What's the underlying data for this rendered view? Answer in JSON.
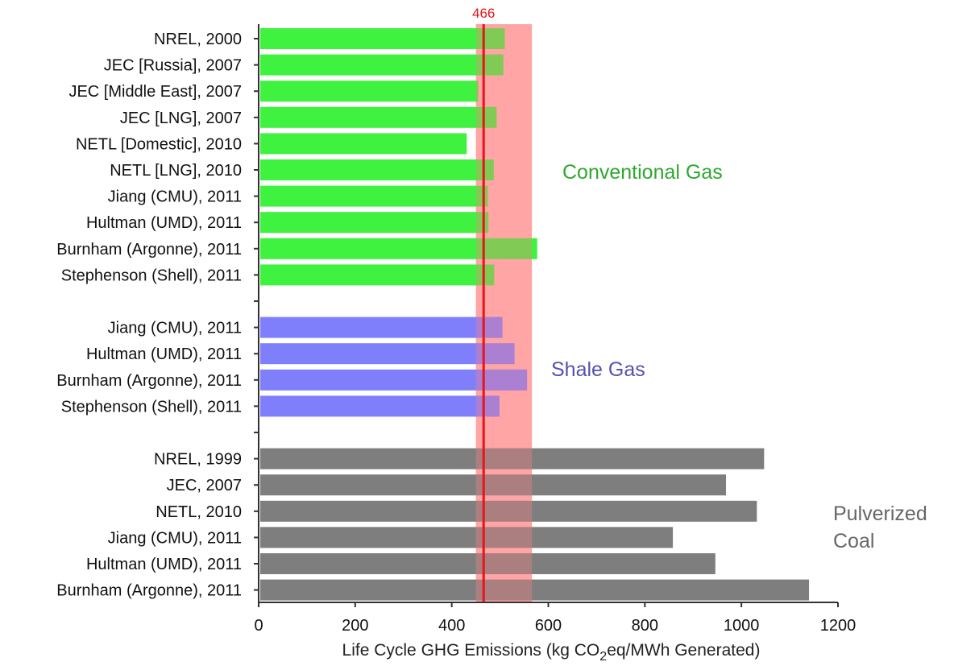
{
  "chart_data": {
    "type": "bar",
    "orientation": "horizontal",
    "xlabel": "Life Cycle GHG Emissions (kg CO2eq/MWh Generated)",
    "xlabel_parts": {
      "before": "Life Cycle GHG Emissions (kg CO",
      "subscript": "2",
      "after": "eq/MWh Generated)"
    },
    "xlim": [
      0,
      1200
    ],
    "xticks": [
      "0",
      "200",
      "400",
      "600",
      "800",
      "1000",
      "1200"
    ],
    "grid": false,
    "reference_line": {
      "value": 466,
      "label": "466",
      "color": "#e8141b"
    },
    "reference_band": {
      "from": 450,
      "to": 566,
      "color": "#ff9b9b"
    },
    "groups": [
      {
        "name": "Conventional Gas",
        "color": "#3ff23f",
        "label_color": "#2ea82e",
        "bars": [
          {
            "label": "NREL, 2000",
            "value": 510
          },
          {
            "label": "JEC [Russia], 2007",
            "value": 507
          },
          {
            "label": "JEC [Middle East], 2007",
            "value": 455
          },
          {
            "label": "JEC [LNG], 2007",
            "value": 493
          },
          {
            "label": "NETL [Domestic], 2010",
            "value": 431
          },
          {
            "label": "NETL [LNG], 2010",
            "value": 487
          },
          {
            "label": "Jiang (CMU), 2011",
            "value": 475
          },
          {
            "label": "Hultman (UMD), 2011",
            "value": 476
          },
          {
            "label": "Burnham (Argonne), 2011",
            "value": 577
          },
          {
            "label": "Stephenson (Shell), 2011",
            "value": 488
          }
        ]
      },
      {
        "name": "Shale Gas",
        "color": "#7f7ffc",
        "label_color": "#5252b0",
        "bars": [
          {
            "label": "Jiang (CMU), 2011",
            "value": 505
          },
          {
            "label": "Hultman (UMD), 2011",
            "value": 530
          },
          {
            "label": "Burnham (Argonne), 2011",
            "value": 556
          },
          {
            "label": "Stephenson (Shell), 2011",
            "value": 499
          }
        ]
      },
      {
        "name": "Pulverized\nCoal",
        "color": "#7e7e7e",
        "label_color": "#666666",
        "bars": [
          {
            "label": "NREL, 1999",
            "value": 1047
          },
          {
            "label": "JEC, 2007",
            "value": 968
          },
          {
            "label": "NETL, 2010",
            "value": 1032
          },
          {
            "label": "Jiang (CMU), 2011",
            "value": 858
          },
          {
            "label": "Hultman (UMD), 2011",
            "value": 946
          },
          {
            "label": "Burnham (Argonne), 2011",
            "value": 1140
          }
        ]
      }
    ]
  }
}
